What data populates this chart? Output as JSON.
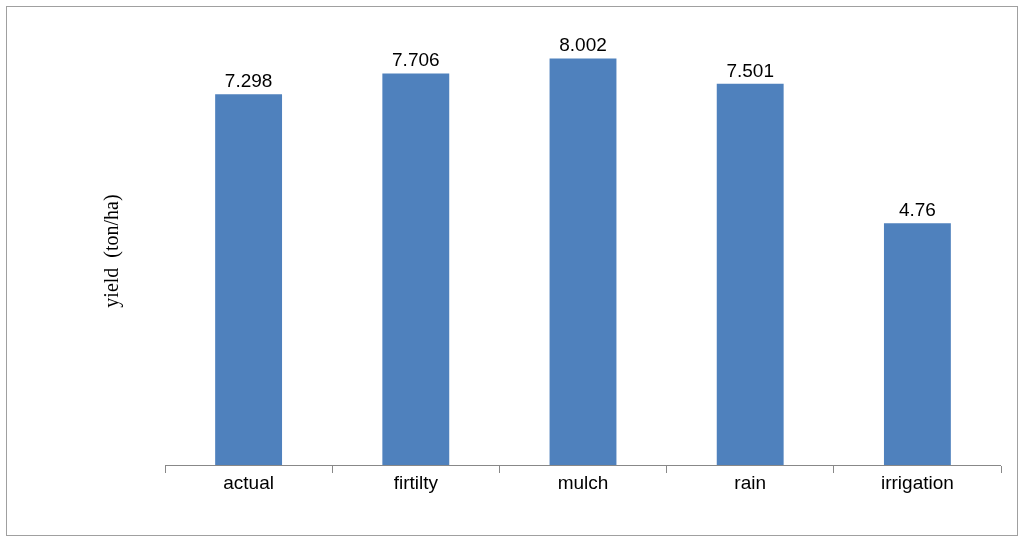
{
  "chart_data": {
    "type": "bar",
    "ylabel": "yield  (ton/ha)",
    "categories": [
      "actual",
      "firtilty",
      "mulch",
      "rain",
      "irrigation"
    ],
    "values": [
      7.298,
      7.706,
      8.002,
      7.501,
      4.76
    ],
    "color": "#4f81bd",
    "data_labels": true,
    "tick_labels": "x"
  }
}
